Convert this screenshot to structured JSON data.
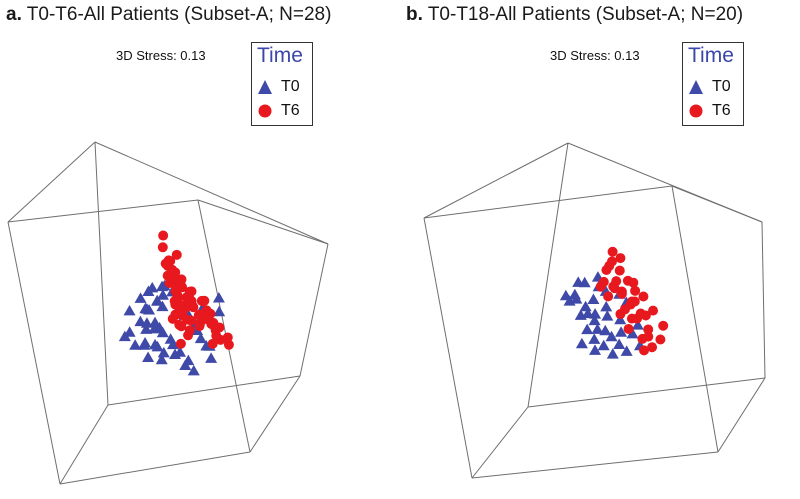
{
  "chart_data": [
    {
      "type": "scatter",
      "panel_label": "a.",
      "title": "T0-T6-All Patients (Subset-A; N=28)",
      "stress_label": "3D Stress: 0.13",
      "legend": {
        "title": "Time",
        "entries": [
          {
            "label": "T0",
            "marker": "triangle",
            "color": "#3f4aa8"
          },
          {
            "label": "T6",
            "marker": "circle",
            "color": "#e8191e"
          }
        ]
      },
      "axis_projection": "3D MDS (perspective); axis ranges -1 to 1, no tick labels",
      "series": [
        {
          "name": "T0",
          "marker": "triangle",
          "color": "#3f4aa8",
          "points": [
            [
              -0.55,
              -0.25,
              0.25
            ],
            [
              -0.48,
              -0.2,
              0.2
            ],
            [
              -0.4,
              -0.28,
              0.1
            ],
            [
              -0.42,
              -0.15,
              0.35
            ],
            [
              -0.35,
              -0.2,
              0.3
            ],
            [
              -0.3,
              -0.12,
              0.2
            ],
            [
              -0.28,
              -0.25,
              0.05
            ],
            [
              -0.25,
              -0.18,
              0.25
            ],
            [
              -0.2,
              -0.1,
              0.15
            ],
            [
              -0.38,
              -0.05,
              0.4
            ],
            [
              -0.32,
              -0.02,
              0.28
            ],
            [
              -0.26,
              0.0,
              0.18
            ],
            [
              -0.2,
              -0.28,
              0.1
            ],
            [
              -0.15,
              -0.2,
              0.2
            ],
            [
              -0.12,
              -0.12,
              0.05
            ],
            [
              -0.22,
              0.05,
              0.3
            ],
            [
              -0.18,
              0.08,
              0.2
            ],
            [
              -0.14,
              0.12,
              0.25
            ],
            [
              -0.1,
              0.05,
              0.12
            ],
            [
              -0.25,
              -0.35,
              0.3
            ],
            [
              -0.3,
              -0.4,
              0.15
            ],
            [
              -0.2,
              -0.45,
              0.25
            ],
            [
              -0.12,
              -0.35,
              0.1
            ],
            [
              -0.08,
              -0.42,
              0.3
            ],
            [
              -0.05,
              -0.3,
              0.18
            ],
            [
              -0.02,
              -0.22,
              0.05
            ],
            [
              0.0,
              -0.38,
              0.22
            ],
            [
              0.05,
              -0.48,
              0.3
            ],
            [
              -0.16,
              0.18,
              0.35
            ],
            [
              -0.1,
              0.22,
              0.15
            ],
            [
              -0.06,
              0.15,
              0.28
            ],
            [
              0.02,
              0.1,
              0.2
            ],
            [
              0.08,
              0.05,
              0.4
            ],
            [
              0.1,
              -0.05,
              0.25
            ],
            [
              0.12,
              -0.15,
              0.35
            ],
            [
              0.15,
              -0.3,
              0.4
            ],
            [
              0.2,
              -0.4,
              0.5
            ],
            [
              0.18,
              -0.55,
              0.6
            ],
            [
              0.05,
              -0.62,
              0.45
            ],
            [
              -0.05,
              -0.58,
              0.5
            ],
            [
              0.25,
              -0.2,
              0.55
            ],
            [
              0.3,
              -0.05,
              0.5
            ],
            [
              0.32,
              0.1,
              0.45
            ],
            [
              0.0,
              0.3,
              0.1
            ],
            [
              0.05,
              0.35,
              0.05
            ],
            [
              -0.44,
              0.02,
              0.45
            ],
            [
              -0.34,
              0.1,
              0.4
            ],
            [
              -0.4,
              -0.35,
              0.35
            ],
            [
              -0.5,
              -0.05,
              0.3
            ],
            [
              -0.28,
              0.15,
              0.35
            ],
            [
              0.08,
              -0.25,
              0.5
            ],
            [
              0.22,
              0.02,
              0.3
            ],
            [
              0.14,
              -0.42,
              0.58
            ],
            [
              -0.02,
              -0.1,
              0.45
            ]
          ]
        },
        {
          "name": "T6",
          "marker": "circle",
          "color": "#e8191e",
          "points": [
            [
              0.0,
              -0.05,
              0.1
            ],
            [
              0.05,
              0.0,
              0.05
            ],
            [
              0.1,
              -0.08,
              0.0
            ],
            [
              0.15,
              0.02,
              -0.05
            ],
            [
              0.2,
              -0.05,
              0.05
            ],
            [
              0.08,
              0.1,
              0.0
            ],
            [
              0.12,
              0.15,
              -0.1
            ],
            [
              0.18,
              0.08,
              -0.15
            ],
            [
              0.22,
              0.18,
              -0.05
            ],
            [
              0.05,
              0.2,
              0.1
            ],
            [
              0.02,
              0.28,
              0.05
            ],
            [
              0.1,
              0.3,
              -0.05
            ],
            [
              0.16,
              0.35,
              -0.15
            ],
            [
              0.25,
              0.3,
              -0.2
            ],
            [
              0.3,
              0.1,
              -0.1
            ],
            [
              0.32,
              0.0,
              0.0
            ],
            [
              0.28,
              -0.1,
              0.05
            ],
            [
              0.35,
              -0.05,
              -0.1
            ],
            [
              0.4,
              0.05,
              -0.2
            ],
            [
              0.45,
              0.0,
              -0.15
            ],
            [
              0.48,
              -0.12,
              -0.05
            ],
            [
              0.52,
              0.1,
              -0.3
            ],
            [
              0.55,
              -0.02,
              -0.25
            ],
            [
              0.6,
              0.08,
              -0.4
            ],
            [
              0.65,
              -0.05,
              -0.35
            ],
            [
              0.7,
              -0.15,
              -0.3
            ],
            [
              0.62,
              -0.25,
              -0.1
            ],
            [
              0.42,
              -0.2,
              0.1
            ],
            [
              0.36,
              0.22,
              -0.3
            ],
            [
              0.44,
              0.28,
              -0.4
            ],
            [
              -0.05,
              0.4,
              0.2
            ],
            [
              0.0,
              0.45,
              0.05
            ],
            [
              0.08,
              0.5,
              -0.05
            ],
            [
              0.14,
              0.55,
              0.0
            ],
            [
              0.2,
              0.45,
              -0.25
            ],
            [
              0.06,
              0.62,
              -0.1
            ],
            [
              0.18,
              0.75,
              -0.3
            ],
            [
              -0.08,
              0.3,
              0.25
            ],
            [
              -0.02,
              0.12,
              0.3
            ],
            [
              0.02,
              -0.15,
              0.25
            ],
            [
              0.1,
              -0.22,
              0.2
            ],
            [
              -0.05,
              -0.35,
              0.4
            ],
            [
              0.0,
              -0.05,
              0.35
            ],
            [
              0.26,
              0.4,
              -0.35
            ],
            [
              0.32,
              0.55,
              -0.5
            ],
            [
              0.12,
              0.05,
              0.15
            ],
            [
              0.2,
              0.12,
              0.1
            ],
            [
              0.24,
              -0.02,
              0.15
            ],
            [
              0.16,
              -0.15,
              0.1
            ],
            [
              0.38,
              0.15,
              -0.05
            ],
            [
              0.04,
              0.36,
              0.15
            ],
            [
              0.28,
              0.24,
              -0.1
            ],
            [
              0.46,
              0.18,
              -0.25
            ],
            [
              0.58,
              0.2,
              -0.45
            ],
            [
              0.5,
              -0.22,
              0.0
            ],
            [
              0.34,
              -0.3,
              0.2
            ],
            [
              0.08,
              0.05,
              0.2
            ],
            [
              0.14,
              0.25,
              0.05
            ],
            [
              0.22,
              0.35,
              -0.12
            ],
            [
              -0.06,
              0.05,
              0.4
            ],
            [
              0.06,
              -0.1,
              0.3
            ],
            [
              0.4,
              -0.08,
              0.05
            ]
          ]
        }
      ]
    },
    {
      "type": "scatter",
      "panel_label": "b.",
      "title": "T0-T18-All Patients (Subset-A; N=20)",
      "stress_label": "3D Stress: 0.13",
      "legend": {
        "title": "Time",
        "entries": [
          {
            "label": "T0",
            "marker": "triangle",
            "color": "#3f4aa8"
          },
          {
            "label": "T6",
            "marker": "circle",
            "color": "#e8191e"
          }
        ]
      },
      "axis_projection": "3D MDS (perspective); axis ranges -1 to 1, no tick labels",
      "series": [
        {
          "name": "T0",
          "marker": "triangle",
          "color": "#3f4aa8",
          "points": [
            [
              -0.45,
              0.1,
              0.1
            ],
            [
              -0.4,
              0.05,
              0.2
            ],
            [
              -0.35,
              0.12,
              0.05
            ],
            [
              -0.3,
              0.0,
              0.15
            ],
            [
              -0.32,
              -0.08,
              0.25
            ],
            [
              -0.25,
              0.05,
              0.2
            ],
            [
              -0.2,
              -0.05,
              0.1
            ],
            [
              -0.28,
              -0.15,
              0.3
            ],
            [
              -0.22,
              -0.2,
              0.2
            ],
            [
              -0.15,
              -0.1,
              0.25
            ],
            [
              -0.18,
              0.1,
              0.3
            ],
            [
              -0.12,
              0.0,
              0.15
            ],
            [
              -0.1,
              -0.18,
              0.05
            ],
            [
              -0.38,
              -0.25,
              0.4
            ],
            [
              -0.3,
              -0.32,
              0.35
            ],
            [
              -0.25,
              -0.4,
              0.45
            ],
            [
              -0.15,
              -0.3,
              0.35
            ],
            [
              -0.1,
              -0.38,
              0.4
            ],
            [
              -0.05,
              -0.25,
              0.3
            ],
            [
              -0.02,
              -0.12,
              0.2
            ],
            [
              0.0,
              -0.3,
              0.45
            ],
            [
              0.05,
              -0.42,
              0.5
            ],
            [
              -0.42,
              -0.12,
              0.35
            ],
            [
              -0.48,
              0.02,
              0.25
            ],
            [
              -0.36,
              0.2,
              0.15
            ],
            [
              -0.26,
              0.22,
              0.05
            ],
            [
              -0.16,
              0.18,
              0.1
            ],
            [
              -0.06,
              0.08,
              0.3
            ],
            [
              0.02,
              0.02,
              0.25
            ],
            [
              -0.08,
              -0.48,
              0.55
            ],
            [
              -0.2,
              -0.5,
              0.55
            ],
            [
              0.08,
              -0.2,
              0.35
            ],
            [
              -0.34,
              -0.45,
              0.5
            ],
            [
              -0.12,
              0.28,
              0.0
            ],
            [
              -0.44,
              -0.38,
              0.45
            ]
          ]
        },
        {
          "name": "T6",
          "marker": "circle",
          "color": "#e8191e",
          "points": [
            [
              -0.1,
              0.2,
              0.0
            ],
            [
              -0.05,
              0.25,
              -0.05
            ],
            [
              0.0,
              0.18,
              0.05
            ],
            [
              0.05,
              0.22,
              -0.1
            ],
            [
              0.1,
              0.15,
              -0.05
            ],
            [
              0.12,
              0.28,
              -0.2
            ],
            [
              0.18,
              0.2,
              -0.25
            ],
            [
              0.22,
              0.1,
              -0.15
            ],
            [
              0.15,
              0.05,
              0.0
            ],
            [
              0.08,
              0.0,
              0.05
            ],
            [
              0.02,
              -0.05,
              0.1
            ],
            [
              0.1,
              -0.1,
              0.15
            ],
            [
              0.18,
              -0.08,
              0.05
            ],
            [
              0.25,
              -0.02,
              -0.05
            ],
            [
              0.3,
              0.12,
              -0.3
            ],
            [
              0.35,
              0.22,
              -0.4
            ],
            [
              0.28,
              0.3,
              -0.35
            ],
            [
              0.2,
              0.38,
              -0.3
            ],
            [
              0.12,
              0.45,
              -0.25
            ],
            [
              0.05,
              0.4,
              -0.15
            ],
            [
              0.22,
              0.55,
              -0.45
            ],
            [
              0.3,
              0.5,
              -0.5
            ],
            [
              0.4,
              0.3,
              -0.55
            ],
            [
              0.45,
              0.18,
              -0.5
            ],
            [
              0.38,
              0.0,
              -0.3
            ],
            [
              0.32,
              -0.15,
              -0.1
            ],
            [
              0.25,
              -0.25,
              0.1
            ],
            [
              0.15,
              -0.3,
              0.25
            ],
            [
              0.05,
              -0.2,
              0.2
            ],
            [
              0.4,
              -0.25,
              -0.05
            ],
            [
              0.5,
              -0.1,
              -0.25
            ],
            [
              0.48,
              0.05,
              -0.4
            ],
            [
              -0.02,
              0.35,
              -0.05
            ],
            [
              -0.08,
              0.1,
              0.1
            ],
            [
              0.2,
              -0.4,
              0.35
            ],
            [
              0.1,
              -0.45,
              0.45
            ]
          ]
        }
      ]
    }
  ]
}
